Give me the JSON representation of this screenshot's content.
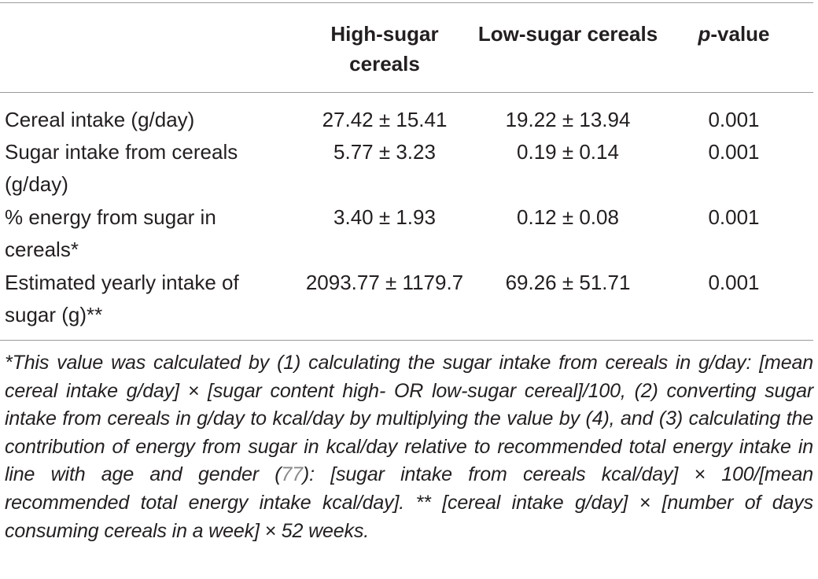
{
  "table": {
    "headers": {
      "col1": "High-sugar cereals",
      "col2": "Low-sugar cereals",
      "col3_italic": "p",
      "col3_rest": "-value"
    },
    "rows": [
      {
        "label": "Cereal intake (g/day)",
        "high": "27.42 ± 15.41",
        "low": "19.22 ± 13.94",
        "p": "0.001"
      },
      {
        "label": "Sugar intake from cereals (g/day)",
        "high": "5.77 ± 3.23",
        "low": "0.19 ± 0.14",
        "p": "0.001"
      },
      {
        "label": "% energy from sugar in cereals*",
        "high": "3.40 ± 1.93",
        "low": "0.12 ± 0.08",
        "p": "0.001"
      },
      {
        "label": "Estimated yearly intake of sugar (g)**",
        "high": "2093.77 ± 1179.7",
        "low": "69.26 ± 51.71",
        "p": "0.001"
      }
    ]
  },
  "footnote": {
    "part1": "*This value was calculated by (1) calculating the sugar intake from cereals in g/day: [mean cereal intake g/day] × [sugar content high- OR low-sugar cereal]/100, (2) converting sugar intake from cereals in g/day to kcal/day by multiplying the value by (4), and (3) calculating the contribution of energy from sugar in kcal/day relative to recommended total energy intake in line with age and gender (",
    "ref": "77",
    "part2": "): [sugar intake from cereals kcal/day] × 100/[mean recommended total energy intake kcal/day].",
    "part3": "** [cereal intake g/day] × [number of days consuming cereals in a week] × 52 weeks."
  },
  "colors": {
    "text": "#231f20",
    "rule": "#9a9a9a",
    "reference": "#8a8a8a"
  }
}
